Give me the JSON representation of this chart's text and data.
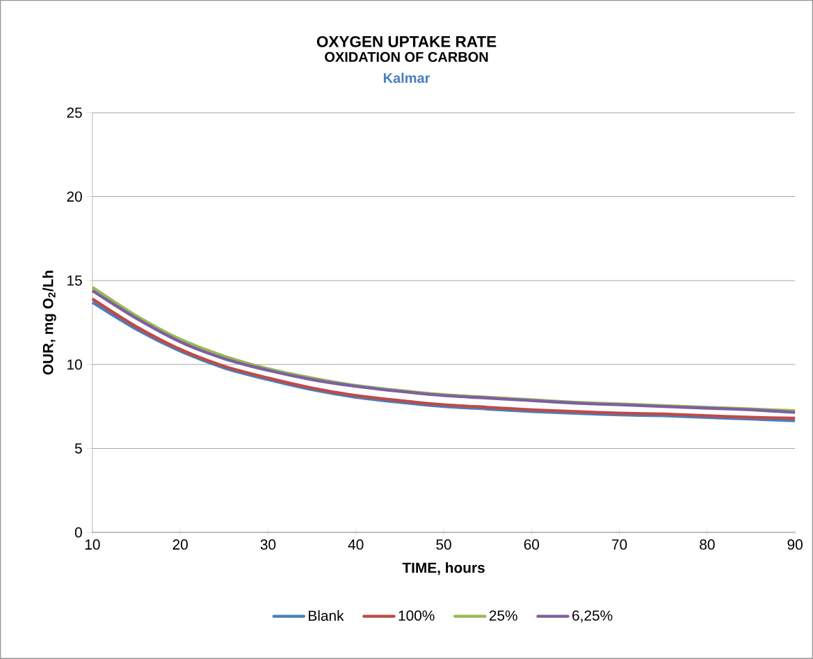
{
  "chart_data": {
    "type": "line",
    "title": "OXYGEN UPTAKE RATE",
    "subtitle": "OXIDATION OF CARBON",
    "annotations": [
      "Kalmar"
    ],
    "xlabel": "TIME, hours",
    "ylabel": "OUR, mg O$_{2}$/Lh",
    "x": [
      10,
      15,
      20,
      25,
      30,
      35,
      40,
      45,
      50,
      55,
      60,
      65,
      70,
      75,
      80,
      85,
      90
    ],
    "series": [
      {
        "name": "Blank",
        "color": "#4a7ebb",
        "values": [
          13.7,
          12.1,
          10.8,
          9.8,
          9.1,
          8.5,
          8.05,
          7.75,
          7.5,
          7.35,
          7.2,
          7.1,
          7.0,
          6.95,
          6.85,
          6.75,
          6.65
        ]
      },
      {
        "name": "100%",
        "color": "#be4b48",
        "values": [
          13.9,
          12.25,
          10.9,
          9.9,
          9.2,
          8.6,
          8.15,
          7.85,
          7.6,
          7.45,
          7.3,
          7.2,
          7.1,
          7.05,
          6.95,
          6.85,
          6.8
        ]
      },
      {
        "name": "25%",
        "color": "#98b954",
        "values": [
          14.6,
          12.9,
          11.5,
          10.5,
          9.75,
          9.2,
          8.75,
          8.45,
          8.2,
          8.05,
          7.9,
          7.75,
          7.65,
          7.55,
          7.45,
          7.35,
          7.25
        ]
      },
      {
        "name": "6,25%",
        "color": "#7d60a0",
        "values": [
          14.4,
          12.75,
          11.35,
          10.35,
          9.65,
          9.1,
          8.7,
          8.4,
          8.15,
          8.0,
          7.85,
          7.7,
          7.6,
          7.5,
          7.4,
          7.3,
          7.15
        ]
      }
    ],
    "xlim": [
      10,
      90
    ],
    "xticks": [
      10,
      20,
      30,
      40,
      50,
      60,
      70,
      80,
      90
    ],
    "ylim": [
      0,
      25
    ],
    "yticks": [
      0,
      5,
      10,
      15,
      20,
      25
    ],
    "grid": "y",
    "legend": "bottom",
    "marker": "none",
    "line_style": "solid"
  }
}
